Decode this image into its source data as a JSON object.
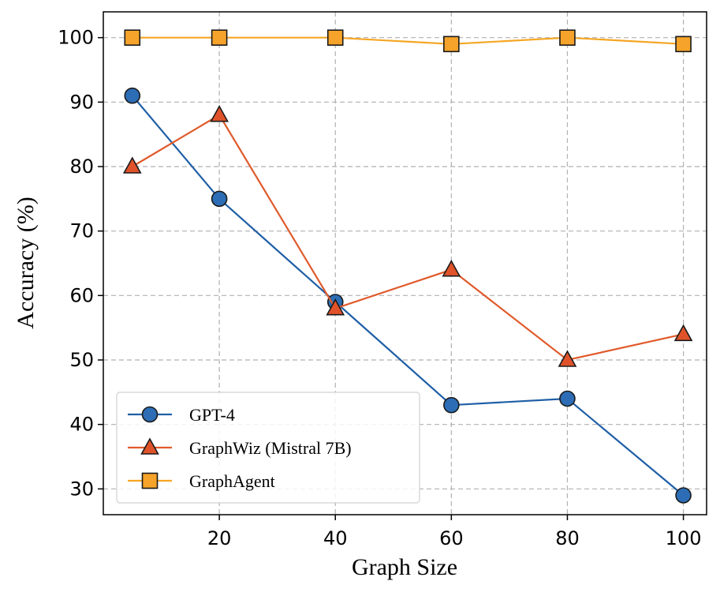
{
  "chart_data": {
    "type": "line",
    "title": "",
    "xlabel": "Graph Size",
    "ylabel": "Accuracy (%)",
    "x": [
      5,
      20,
      40,
      60,
      80,
      100
    ],
    "x_ticks": [
      20,
      40,
      60,
      80,
      100
    ],
    "xlim": [
      0,
      104
    ],
    "y_ticks": [
      30,
      40,
      50,
      60,
      70,
      80,
      90,
      100
    ],
    "ylim": [
      26,
      104
    ],
    "grid": true,
    "legend_position": "bottom-left",
    "series": [
      {
        "name": "GPT-4",
        "color": "#1f5fa6",
        "marker_fill": "#2c6db5",
        "marker": "circle",
        "values": [
          91,
          75,
          59,
          43,
          44,
          29
        ]
      },
      {
        "name": "GraphWiz (Mistral 7B)",
        "color": "#e05a2b",
        "marker_fill": "#e0532a",
        "marker": "triangle",
        "values": [
          80,
          88,
          58,
          64,
          50,
          54
        ]
      },
      {
        "name": "GraphAgent",
        "color": "#f5a623",
        "marker_fill": "#f5a32a",
        "marker": "square",
        "values": [
          100,
          100,
          100,
          99,
          100,
          99
        ]
      }
    ]
  }
}
